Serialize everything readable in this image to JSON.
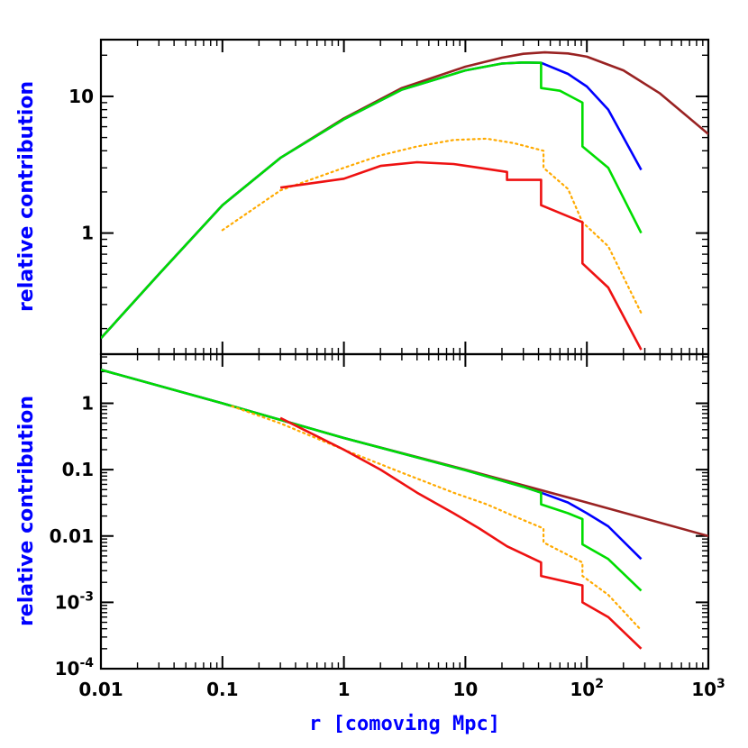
{
  "chart_data": [
    {
      "panel": "top",
      "type": "line",
      "xscale": "log",
      "yscale": "log",
      "xlim": [
        0.01,
        1000
      ],
      "ylim": [
        0.13,
        26
      ],
      "ylabel": "relative contribution",
      "yticks": [
        {
          "value": 1,
          "label": "1"
        },
        {
          "value": 10,
          "label": "10"
        }
      ],
      "series": [
        {
          "name": "brown",
          "color": "#992222",
          "style": "solid",
          "points": [
            [
              0.01,
              0.17
            ],
            [
              0.03,
              0.5
            ],
            [
              0.1,
              1.6
            ],
            [
              0.3,
              3.55
            ],
            [
              1,
              6.9
            ],
            [
              3,
              11.5
            ],
            [
              10,
              16.5
            ],
            [
              20,
              19.2
            ],
            [
              30,
              20.5
            ],
            [
              45,
              21.0
            ],
            [
              70,
              20.6
            ],
            [
              100,
              19.5
            ],
            [
              200,
              15.5
            ],
            [
              400,
              10.5
            ],
            [
              1000,
              5.3
            ]
          ]
        },
        {
          "name": "blue",
          "color": "#0000ff",
          "style": "solid",
          "points": [
            [
              0.01,
              0.17
            ],
            [
              0.03,
              0.5
            ],
            [
              0.1,
              1.6
            ],
            [
              0.3,
              3.55
            ],
            [
              1,
              6.8
            ],
            [
              3,
              11.2
            ],
            [
              10,
              15.5
            ],
            [
              20,
              17.4
            ],
            [
              30,
              17.7
            ],
            [
              42,
              17.6
            ],
            [
              70,
              14.6
            ],
            [
              100,
              11.8
            ],
            [
              150,
              8.0
            ],
            [
              280,
              2.9
            ]
          ]
        },
        {
          "name": "green",
          "color": "#00dd00",
          "style": "solid",
          "points": [
            [
              0.01,
              0.17
            ],
            [
              0.03,
              0.5
            ],
            [
              0.1,
              1.6
            ],
            [
              0.3,
              3.55
            ],
            [
              1,
              6.8
            ],
            [
              3,
              11.2
            ],
            [
              10,
              15.5
            ],
            [
              20,
              17.4
            ],
            [
              30,
              17.7
            ],
            [
              42,
              17.6
            ],
            [
              42,
              11.5
            ],
            [
              60,
              11.0
            ],
            [
              92,
              9.0
            ],
            [
              92,
              4.3
            ],
            [
              150,
              3.0
            ],
            [
              280,
              1.0
            ]
          ]
        },
        {
          "name": "orange",
          "color": "#ffaa00",
          "style": "dotted",
          "points": [
            [
              0.1,
              1.05
            ],
            [
              0.3,
              2.05
            ],
            [
              1,
              3.0
            ],
            [
              2,
              3.7
            ],
            [
              4,
              4.3
            ],
            [
              8,
              4.8
            ],
            [
              15,
              4.9
            ],
            [
              25,
              4.55
            ],
            [
              44,
              4.0
            ],
            [
              44,
              3.0
            ],
            [
              70,
              2.1
            ],
            [
              92,
              1.2
            ],
            [
              150,
              0.8
            ],
            [
              280,
              0.26
            ]
          ]
        },
        {
          "name": "red",
          "color": "#ee1111",
          "style": "solid",
          "points": [
            [
              0.3,
              2.15
            ],
            [
              1,
              2.5
            ],
            [
              2,
              3.1
            ],
            [
              4,
              3.3
            ],
            [
              8,
              3.2
            ],
            [
              13,
              3.0
            ],
            [
              22,
              2.8
            ],
            [
              22,
              2.45
            ],
            [
              42,
              2.45
            ],
            [
              42,
              1.6
            ],
            [
              92,
              1.2
            ],
            [
              92,
              0.6
            ],
            [
              150,
              0.4
            ],
            [
              280,
              0.14
            ]
          ]
        }
      ]
    },
    {
      "panel": "bottom",
      "type": "line",
      "xscale": "log",
      "yscale": "log",
      "xlim": [
        0.01,
        1000
      ],
      "ylim": [
        0.0001,
        5.5
      ],
      "xlabel": "r [comoving Mpc]",
      "ylabel": "relative contribution",
      "xticks": [
        {
          "value": 0.01,
          "label": "0.01"
        },
        {
          "value": 0.1,
          "label": "0.1"
        },
        {
          "value": 1,
          "label": "1"
        },
        {
          "value": 10,
          "label": "10"
        },
        {
          "value": 100,
          "base": "10",
          "exp": "2"
        },
        {
          "value": 1000,
          "base": "10",
          "exp": "3"
        }
      ],
      "yticks": [
        {
          "value": 0.0001,
          "base": "10",
          "exp": "-4"
        },
        {
          "value": 0.001,
          "base": "10",
          "exp": "-3"
        },
        {
          "value": 0.01,
          "label": "0.01"
        },
        {
          "value": 0.1,
          "label": "0.1"
        },
        {
          "value": 1,
          "label": "1"
        }
      ],
      "series": [
        {
          "name": "brown",
          "color": "#992222",
          "style": "solid",
          "points": [
            [
              0.01,
              3.2
            ],
            [
              0.1,
              1.0
            ],
            [
              1,
              0.3
            ],
            [
              10,
              0.1
            ],
            [
              100,
              0.032
            ],
            [
              1000,
              0.01
            ]
          ]
        },
        {
          "name": "blue",
          "color": "#0000ff",
          "style": "solid",
          "points": [
            [
              0.01,
              3.2
            ],
            [
              0.1,
              1.0
            ],
            [
              1,
              0.3
            ],
            [
              10,
              0.098
            ],
            [
              30,
              0.055
            ],
            [
              42,
              0.045
            ],
            [
              70,
              0.032
            ],
            [
              100,
              0.022
            ],
            [
              150,
              0.014
            ],
            [
              280,
              0.0045
            ]
          ]
        },
        {
          "name": "green",
          "color": "#00dd00",
          "style": "solid",
          "points": [
            [
              0.01,
              3.2
            ],
            [
              0.1,
              1.0
            ],
            [
              1,
              0.3
            ],
            [
              10,
              0.098
            ],
            [
              30,
              0.055
            ],
            [
              42,
              0.045
            ],
            [
              42,
              0.03
            ],
            [
              70,
              0.022
            ],
            [
              92,
              0.018
            ],
            [
              92,
              0.0075
            ],
            [
              150,
              0.0045
            ],
            [
              280,
              0.0015
            ]
          ]
        },
        {
          "name": "orange",
          "color": "#ffaa00",
          "style": "dotted",
          "points": [
            [
              0.12,
              0.9
            ],
            [
              0.3,
              0.5
            ],
            [
              1,
              0.2
            ],
            [
              3,
              0.09
            ],
            [
              8,
              0.045
            ],
            [
              15,
              0.03
            ],
            [
              25,
              0.02
            ],
            [
              44,
              0.013
            ],
            [
              44,
              0.008
            ],
            [
              92,
              0.004
            ],
            [
              92,
              0.0025
            ],
            [
              150,
              0.0013
            ],
            [
              280,
              0.00038
            ]
          ]
        },
        {
          "name": "red",
          "color": "#ee1111",
          "style": "solid",
          "points": [
            [
              0.3,
              0.6
            ],
            [
              1,
              0.2
            ],
            [
              2,
              0.1
            ],
            [
              4,
              0.045
            ],
            [
              8,
              0.022
            ],
            [
              13,
              0.013
            ],
            [
              22,
              0.007
            ],
            [
              42,
              0.004
            ],
            [
              42,
              0.0025
            ],
            [
              92,
              0.0018
            ],
            [
              92,
              0.001
            ],
            [
              150,
              0.0006
            ],
            [
              280,
              0.0002
            ]
          ]
        }
      ]
    }
  ]
}
